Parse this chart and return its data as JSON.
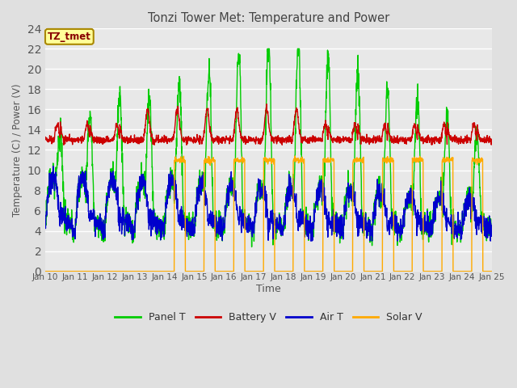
{
  "title": "Tonzi Tower Met: Temperature and Power",
  "xlabel": "Time",
  "ylabel": "Temperature (C) / Power (V)",
  "xlim": [
    0,
    15
  ],
  "ylim": [
    0,
    24
  ],
  "yticks": [
    0,
    2,
    4,
    6,
    8,
    10,
    12,
    14,
    16,
    18,
    20,
    22,
    24
  ],
  "xtick_labels": [
    "Jan 10",
    "Jan 11",
    "Jan 12",
    "Jan 13",
    "Jan 14",
    "Jan 15",
    "Jan 16",
    "Jan 17",
    "Jan 18",
    "Jan 19",
    "Jan 20",
    "Jan 21",
    "Jan 22",
    "Jan 23",
    "Jan 24",
    "Jan 25"
  ],
  "bg_color": "#e0e0e0",
  "plot_bg_color": "#e8e8e8",
  "grid_color": "#ffffff",
  "annotation_text": "TZ_tmet",
  "annotation_color": "#880000",
  "annotation_bg": "#ffff99",
  "colors": {
    "panel": "#00cc00",
    "battery": "#cc0000",
    "air": "#0000cc",
    "solar": "#ffaa00"
  },
  "legend": [
    "Panel T",
    "Battery V",
    "Air T",
    "Solar V"
  ]
}
